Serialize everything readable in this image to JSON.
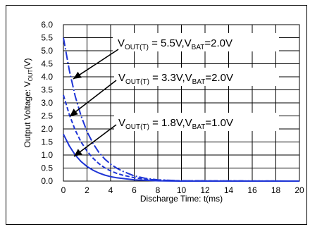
{
  "chart_data": {
    "type": "line",
    "xlabel": "Discharge Time: t(ms)",
    "ylabel_parts": {
      "base": "Output Voltage: V",
      "sub": "OUT",
      "unit": "(V)"
    },
    "xlim": [
      0,
      20
    ],
    "ylim": [
      0,
      6.0
    ],
    "xticks": [
      "0",
      "2",
      "4",
      "6",
      "8",
      "10",
      "12",
      "14",
      "16",
      "18",
      "20"
    ],
    "yticks": [
      "0.0",
      "0.5",
      "1.0",
      "1.5",
      "2.0",
      "2.5",
      "3.0",
      "3.5",
      "4.0",
      "4.5",
      "5.0",
      "5.5",
      "6.0"
    ],
    "grid": true,
    "series": [
      {
        "name": "VOUT(T) = 5.5V,VBAT=2.0V",
        "label_parts": {
          "v1": "V",
          "s1": "OUT(T)",
          "mid": " = 5.5V,V",
          "s2": "BAT",
          "end": "=2.0V"
        },
        "style": "dash-dot",
        "color": "#1f35d6",
        "x": [
          0,
          0.5,
          1.0,
          1.5,
          2.0,
          2.5,
          3.0,
          3.5,
          4.0,
          4.5,
          5.0,
          6.0,
          7.0,
          8.0,
          10.0,
          20.0
        ],
        "y": [
          5.5,
          4.25,
          3.25,
          2.5,
          1.9,
          1.45,
          1.1,
          0.85,
          0.65,
          0.5,
          0.38,
          0.2,
          0.1,
          0.05,
          0.01,
          0.0
        ]
      },
      {
        "name": "VOUT(T) = 3.3V,VBAT=2.0V",
        "label_parts": {
          "v1": "V",
          "s1": "OUT(T)",
          "mid": " = 3.3V,V",
          "s2": "BAT",
          "end": "=2.0V"
        },
        "style": "dashed",
        "color": "#1f35d6",
        "x": [
          0,
          0.5,
          1.0,
          1.5,
          2.0,
          2.5,
          3.0,
          3.5,
          4.0,
          4.5,
          5.0,
          6.0,
          7.0,
          8.0,
          10.0,
          20.0
        ],
        "y": [
          3.3,
          2.55,
          1.95,
          1.5,
          1.15,
          0.88,
          0.67,
          0.51,
          0.39,
          0.3,
          0.23,
          0.13,
          0.07,
          0.04,
          0.01,
          0.0
        ]
      },
      {
        "name": "VOUT(T) = 1.8V,VBAT=1.0V",
        "label_parts": {
          "v1": "V",
          "s1": "OUT(T)",
          "mid": " = 1.8V,V",
          "s2": "BAT",
          "end": "=1.0V"
        },
        "style": "solid",
        "color": "#1f35d6",
        "x": [
          0,
          0.5,
          1.0,
          1.5,
          2.0,
          2.5,
          3.0,
          3.5,
          4.0,
          4.5,
          5.0,
          6.0,
          7.0,
          8.0,
          10.0,
          20.0
        ],
        "y": [
          1.8,
          1.35,
          1.0,
          0.75,
          0.56,
          0.42,
          0.31,
          0.23,
          0.17,
          0.13,
          0.1,
          0.05,
          0.03,
          0.01,
          0.0,
          0.0
        ]
      }
    ]
  }
}
